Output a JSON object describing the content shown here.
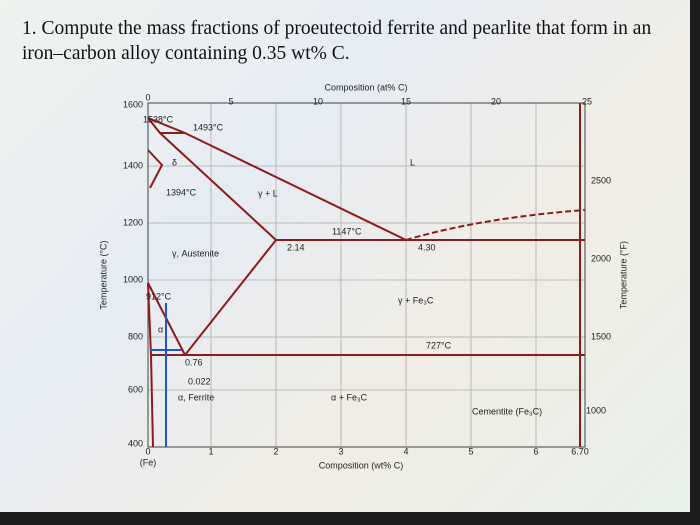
{
  "question": "1. Compute the mass fractions of proeutectoid ferrite and pearlite that form in an iron–carbon alloy containing 0.35 wt% C.",
  "diagram": {
    "top_axis_title": "Composition (at% C)",
    "top_ticks": [
      "0",
      "5",
      "10",
      "15",
      "20",
      "25"
    ],
    "bottom_axis_title": "Composition (wt% C)",
    "bottom_ticks": [
      "0",
      "1",
      "2",
      "3",
      "4",
      "5",
      "6",
      "6.70"
    ],
    "fe_label": "(Fe)",
    "left_axis_title": "Temperature (°C)",
    "left_ticks": [
      "1600",
      "1400",
      "1200",
      "1000",
      "800",
      "600",
      "400"
    ],
    "right_axis_title": "Temperature (°F)",
    "right_ticks": [
      "2500",
      "2000",
      "1500",
      "1000"
    ],
    "labels": [
      "1538°C",
      "1493°C",
      "1394°C",
      "1147°C",
      "912°C",
      "727°C",
      "2.14",
      "4.30",
      "0.76",
      "0.022",
      "δ",
      "γ + L",
      "L",
      "γ, Austenite",
      "γ + Fe₃C",
      "α, Ferrite",
      "α + Fe₃C",
      "Cementite (Fe₃C)",
      "α"
    ]
  }
}
